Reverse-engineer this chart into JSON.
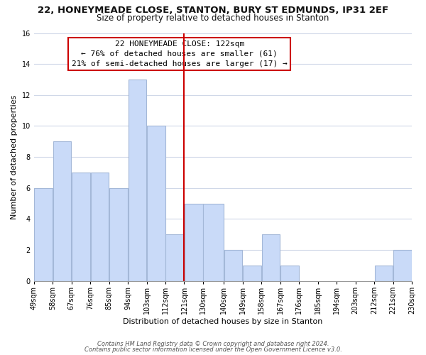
{
  "title_line1": "22, HONEYMEADE CLOSE, STANTON, BURY ST EDMUNDS, IP31 2EF",
  "title_line2": "Size of property relative to detached houses in Stanton",
  "xlabel": "Distribution of detached houses by size in Stanton",
  "ylabel": "Number of detached properties",
  "categories": [
    "49sqm",
    "58sqm",
    "67sqm",
    "76sqm",
    "85sqm",
    "94sqm",
    "103sqm",
    "112sqm",
    "121sqm",
    "130sqm",
    "140sqm",
    "149sqm",
    "158sqm",
    "167sqm",
    "176sqm",
    "185sqm",
    "194sqm",
    "203sqm",
    "212sqm",
    "221sqm",
    "230sqm"
  ],
  "bar_lefts": [
    49,
    58,
    67,
    76,
    85,
    94,
    103,
    112,
    121,
    130,
    140,
    149,
    158,
    167,
    176,
    185,
    194,
    203,
    212,
    221
  ],
  "bar_widths": [
    9,
    9,
    9,
    9,
    9,
    9,
    9,
    9,
    9,
    10,
    9,
    9,
    9,
    9,
    9,
    9,
    9,
    9,
    9,
    9
  ],
  "bar_heights": [
    6,
    9,
    7,
    7,
    6,
    13,
    10,
    3,
    5,
    5,
    2,
    1,
    3,
    1,
    0,
    0,
    0,
    0,
    1,
    2
  ],
  "bar_color": "#c9daf8",
  "bar_edgecolor": "#a4b8d8",
  "reference_line_x": 121,
  "reference_line_color": "#cc0000",
  "ylim": [
    0,
    16
  ],
  "yticks": [
    0,
    2,
    4,
    6,
    8,
    10,
    12,
    14,
    16
  ],
  "annotation_line1": "22 HONEYMEADE CLOSE: 122sqm",
  "annotation_line2": "← 76% of detached houses are smaller (61)",
  "annotation_line3": "21% of semi-detached houses are larger (17) →",
  "annotation_box_edgecolor": "#cc0000",
  "annotation_box_facecolor": "#ffffff",
  "footer_line1": "Contains HM Land Registry data © Crown copyright and database right 2024.",
  "footer_line2": "Contains public sector information licensed under the Open Government Licence v3.0.",
  "bg_color": "#ffffff",
  "grid_color": "#d0d8e8",
  "title_fontsize": 9.5,
  "subtitle_fontsize": 8.5,
  "tick_fontsize": 7,
  "ylabel_fontsize": 8,
  "xlabel_fontsize": 8,
  "annotation_fontsize": 8
}
